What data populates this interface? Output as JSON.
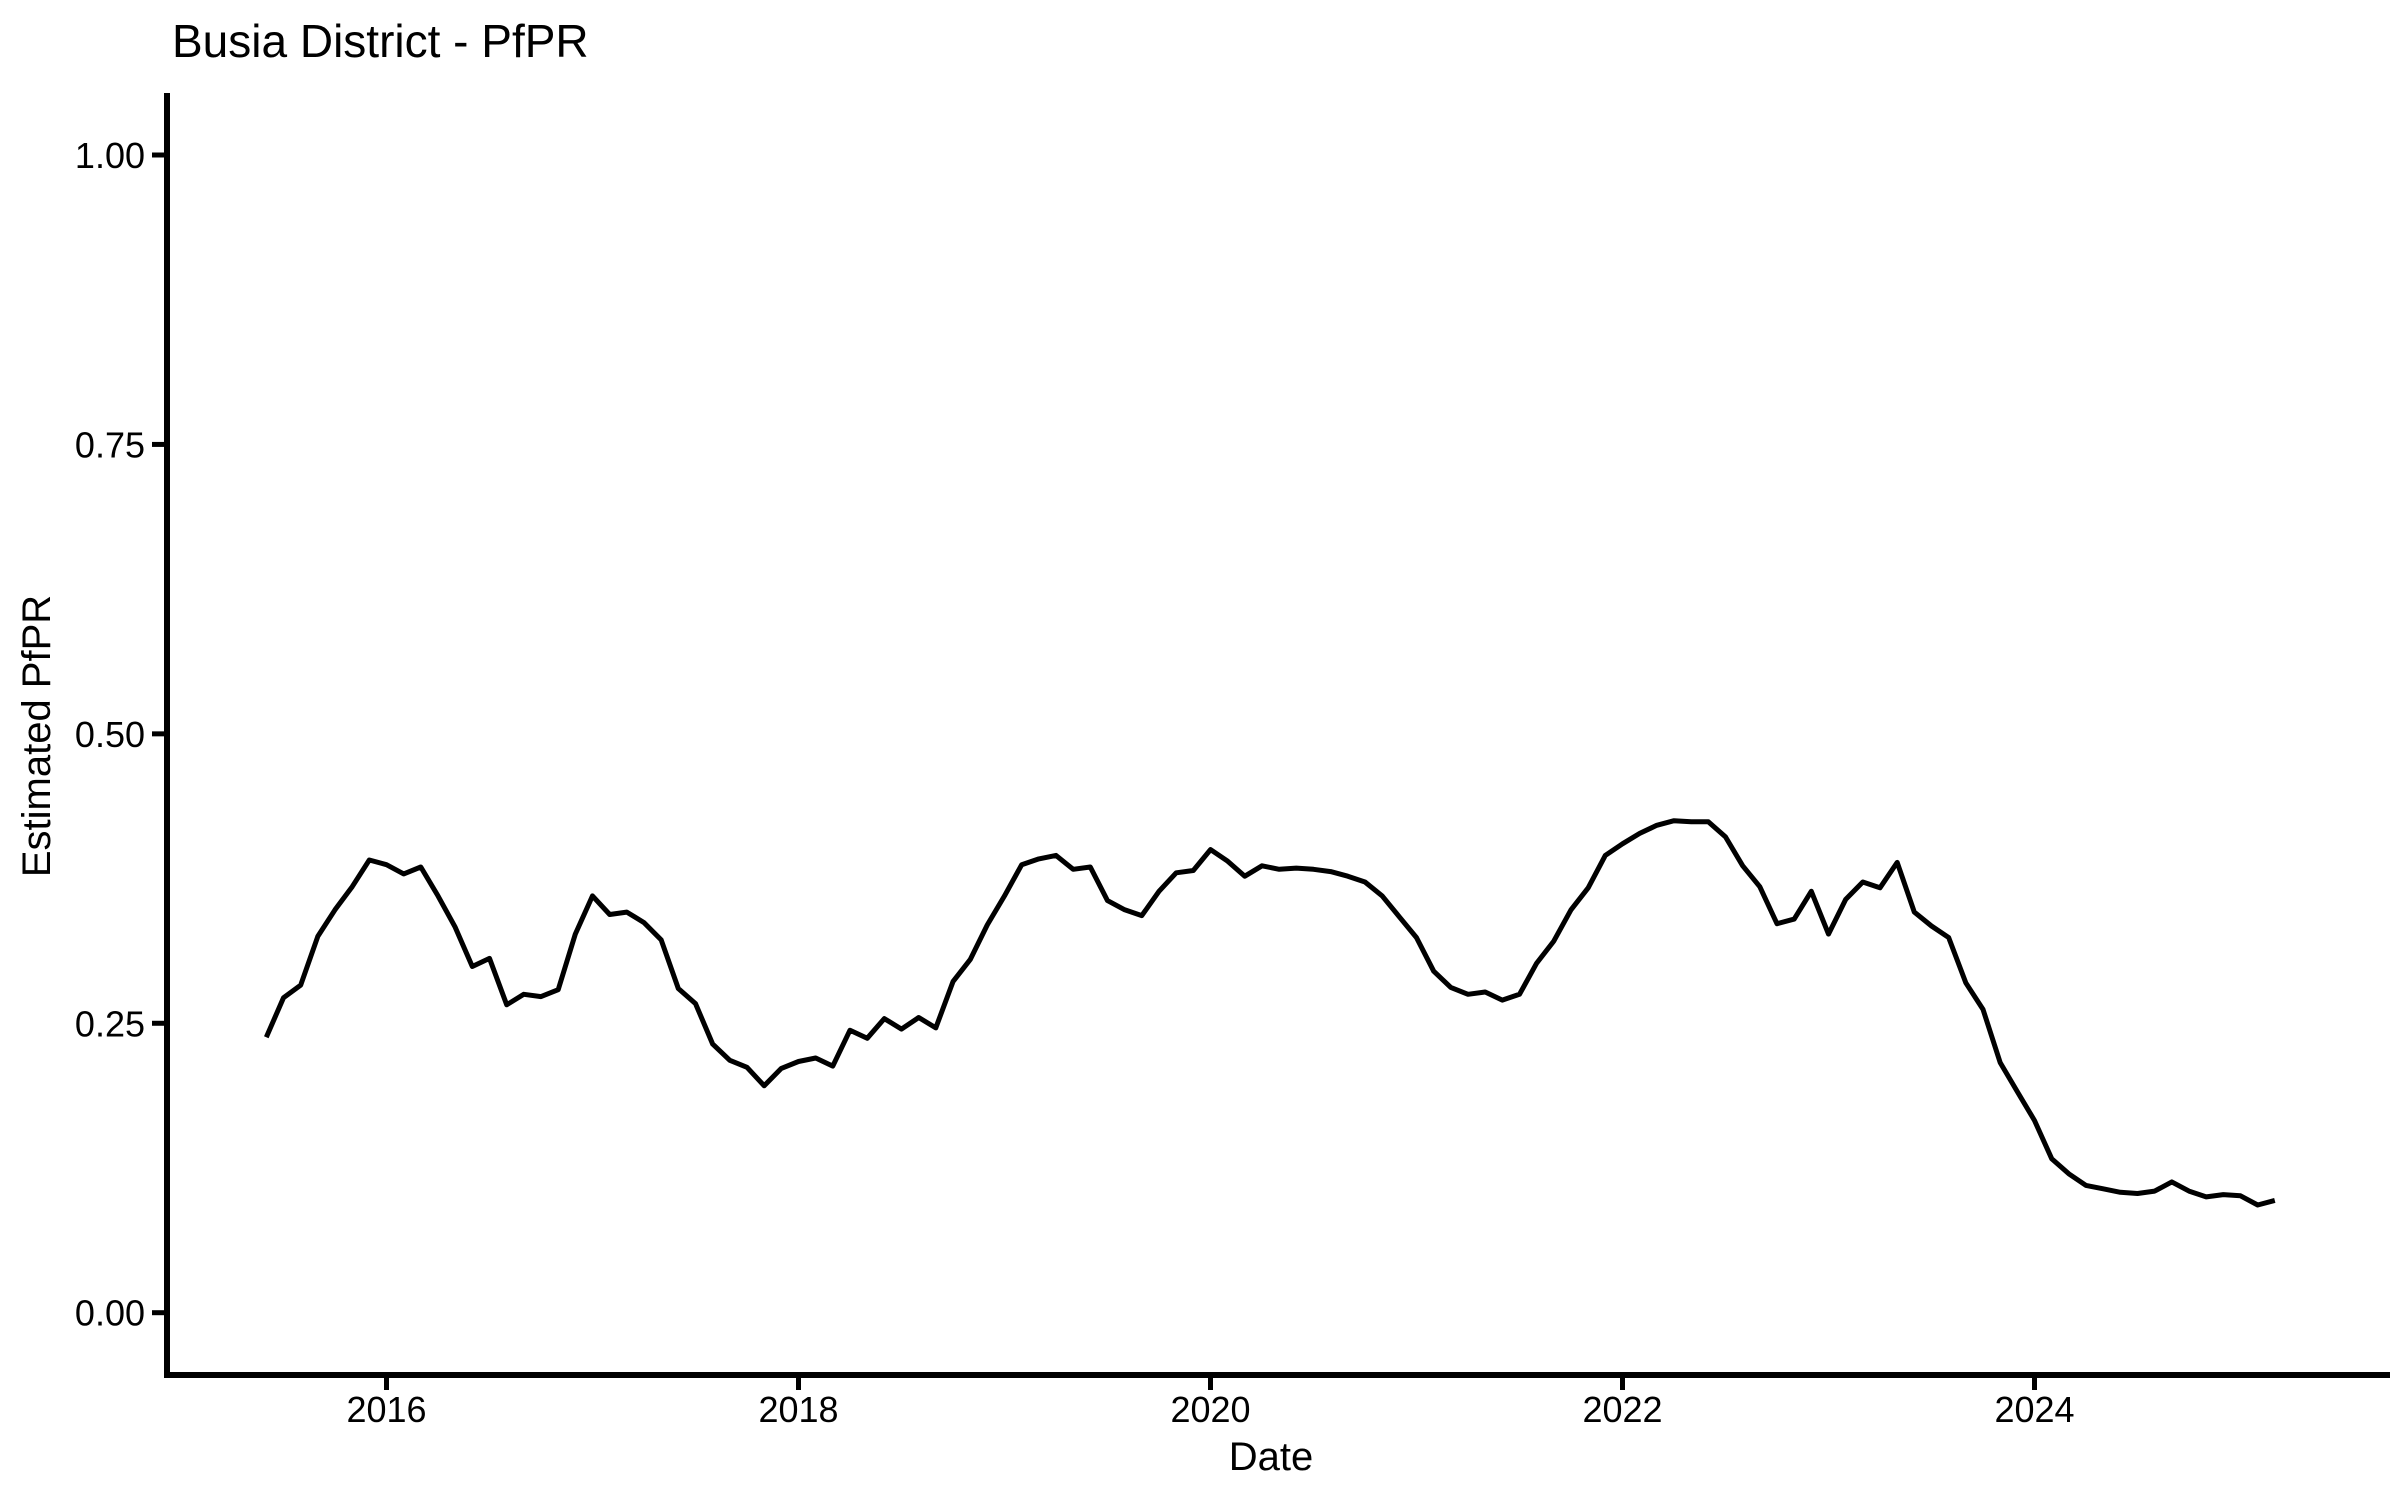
{
  "chart_data": {
    "type": "line",
    "title": "Busia District - PfPR",
    "xlabel": "Date",
    "ylabel": "Estimated PfPR",
    "ylim": [
      0.0,
      1.0
    ],
    "xlim_years": [
      2015.33,
      2025.27
    ],
    "grid": "off",
    "legend": "none",
    "line_color": "#000000",
    "background_color": "#ffffff",
    "y_ticks": [
      {
        "value": 0.0,
        "label": "0.00"
      },
      {
        "value": 0.25,
        "label": "0.25"
      },
      {
        "value": 0.5,
        "label": "0.50"
      },
      {
        "value": 0.75,
        "label": "0.75"
      },
      {
        "value": 1.0,
        "label": "1.00"
      }
    ],
    "x_ticks": [
      {
        "year": 2016,
        "label": "2016"
      },
      {
        "year": 2018,
        "label": "2018"
      },
      {
        "year": 2020,
        "label": "2020"
      },
      {
        "year": 2022,
        "label": "2022"
      },
      {
        "year": 2024,
        "label": "2024"
      }
    ],
    "series": [
      {
        "name": "Estimated PfPR",
        "points": [
          [
            "2015-06",
            0.238
          ],
          [
            "2015-07",
            0.272
          ],
          [
            "2015-08",
            0.283
          ],
          [
            "2015-09",
            0.325
          ],
          [
            "2015-10",
            0.348
          ],
          [
            "2015-11",
            0.368
          ],
          [
            "2015-12",
            0.391
          ],
          [
            "2016-01",
            0.387
          ],
          [
            "2016-02",
            0.379
          ],
          [
            "2016-03",
            0.385
          ],
          [
            "2016-04",
            0.36
          ],
          [
            "2016-05",
            0.333
          ],
          [
            "2016-06",
            0.299
          ],
          [
            "2016-07",
            0.306
          ],
          [
            "2016-08",
            0.266
          ],
          [
            "2016-09",
            0.275
          ],
          [
            "2016-10",
            0.273
          ],
          [
            "2016-11",
            0.279
          ],
          [
            "2016-12",
            0.327
          ],
          [
            "2017-01",
            0.36
          ],
          [
            "2017-02",
            0.344
          ],
          [
            "2017-03",
            0.346
          ],
          [
            "2017-04",
            0.337
          ],
          [
            "2017-05",
            0.322
          ],
          [
            "2017-06",
            0.28
          ],
          [
            "2017-07",
            0.267
          ],
          [
            "2017-08",
            0.232
          ],
          [
            "2017-09",
            0.218
          ],
          [
            "2017-10",
            0.212
          ],
          [
            "2017-11",
            0.196
          ],
          [
            "2017-12",
            0.211
          ],
          [
            "2018-01",
            0.217
          ],
          [
            "2018-02",
            0.22
          ],
          [
            "2018-03",
            0.213
          ],
          [
            "2018-04",
            0.244
          ],
          [
            "2018-05",
            0.237
          ],
          [
            "2018-06",
            0.254
          ],
          [
            "2018-07",
            0.245
          ],
          [
            "2018-08",
            0.255
          ],
          [
            "2018-09",
            0.246
          ],
          [
            "2018-10",
            0.286
          ],
          [
            "2018-11",
            0.305
          ],
          [
            "2018-12",
            0.335
          ],
          [
            "2019-01",
            0.36
          ],
          [
            "2019-02",
            0.387
          ],
          [
            "2019-03",
            0.392
          ],
          [
            "2019-04",
            0.395
          ],
          [
            "2019-05",
            0.383
          ],
          [
            "2019-06",
            0.385
          ],
          [
            "2019-07",
            0.356
          ],
          [
            "2019-08",
            0.348
          ],
          [
            "2019-09",
            0.343
          ],
          [
            "2019-10",
            0.364
          ],
          [
            "2019-11",
            0.38
          ],
          [
            "2019-12",
            0.382
          ],
          [
            "2020-01",
            0.4
          ],
          [
            "2020-02",
            0.39
          ],
          [
            "2020-03",
            0.377
          ],
          [
            "2020-04",
            0.386
          ],
          [
            "2020-05",
            0.383
          ],
          [
            "2020-06",
            0.384
          ],
          [
            "2020-07",
            0.383
          ],
          [
            "2020-08",
            0.381
          ],
          [
            "2020-09",
            0.377
          ],
          [
            "2020-10",
            0.372
          ],
          [
            "2020-11",
            0.36
          ],
          [
            "2020-12",
            0.342
          ],
          [
            "2021-01",
            0.324
          ],
          [
            "2021-02",
            0.295
          ],
          [
            "2021-03",
            0.281
          ],
          [
            "2021-04",
            0.275
          ],
          [
            "2021-05",
            0.277
          ],
          [
            "2021-06",
            0.27
          ],
          [
            "2021-07",
            0.275
          ],
          [
            "2021-08",
            0.302
          ],
          [
            "2021-09",
            0.321
          ],
          [
            "2021-10",
            0.348
          ],
          [
            "2021-11",
            0.367
          ],
          [
            "2021-12",
            0.395
          ],
          [
            "2022-01",
            0.405
          ],
          [
            "2022-02",
            0.414
          ],
          [
            "2022-03",
            0.421
          ],
          [
            "2022-04",
            0.425
          ],
          [
            "2022-05",
            0.424
          ],
          [
            "2022-06",
            0.424
          ],
          [
            "2022-07",
            0.411
          ],
          [
            "2022-08",
            0.386
          ],
          [
            "2022-09",
            0.368
          ],
          [
            "2022-10",
            0.336
          ],
          [
            "2022-11",
            0.34
          ],
          [
            "2022-12",
            0.364
          ],
          [
            "2023-01",
            0.327
          ],
          [
            "2023-02",
            0.357
          ],
          [
            "2023-03",
            0.372
          ],
          [
            "2023-04",
            0.367
          ],
          [
            "2023-05",
            0.389
          ],
          [
            "2023-06",
            0.346
          ],
          [
            "2023-07",
            0.334
          ],
          [
            "2023-08",
            0.324
          ],
          [
            "2023-09",
            0.285
          ],
          [
            "2023-10",
            0.262
          ],
          [
            "2023-11",
            0.216
          ],
          [
            "2023-12",
            0.191
          ],
          [
            "2024-01",
            0.166
          ],
          [
            "2024-02",
            0.133
          ],
          [
            "2024-03",
            0.12
          ],
          [
            "2024-04",
            0.11
          ],
          [
            "2024-05",
            0.107
          ],
          [
            "2024-06",
            0.104
          ],
          [
            "2024-07",
            0.103
          ],
          [
            "2024-08",
            0.105
          ],
          [
            "2024-09",
            0.113
          ],
          [
            "2024-10",
            0.105
          ],
          [
            "2024-11",
            0.1
          ],
          [
            "2024-12",
            0.102
          ],
          [
            "2025-01",
            0.101
          ],
          [
            "2025-02",
            0.093
          ],
          [
            "2025-03",
            0.097
          ]
        ]
      }
    ]
  }
}
